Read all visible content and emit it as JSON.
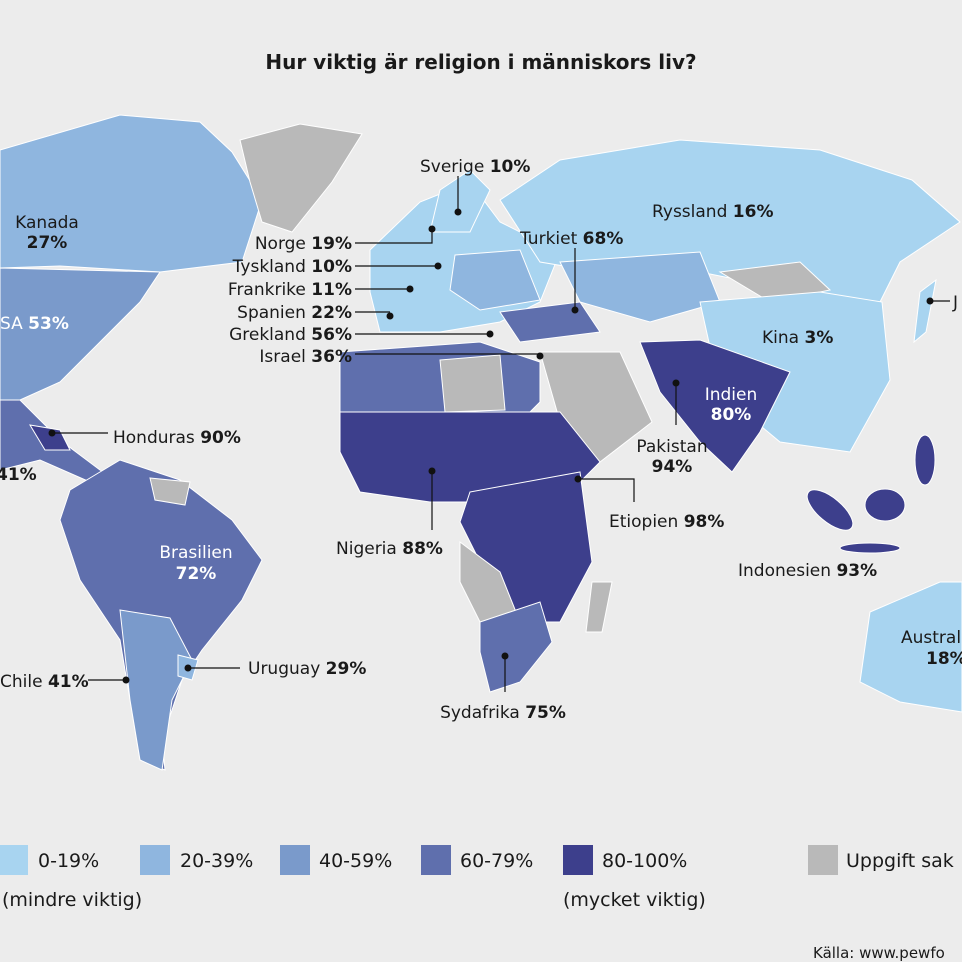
{
  "title": "Hur viktig är religion i människors liv?",
  "labels": [
    {
      "name": "Sverige",
      "value": "10%"
    },
    {
      "name": "Kanada",
      "value": "27%"
    },
    {
      "name": "Ryssland",
      "value": "16%"
    },
    {
      "name": "Turkiet",
      "value": "68%"
    },
    {
      "name": "Norge",
      "value": "19%"
    },
    {
      "name": "Tyskland",
      "value": "10%"
    },
    {
      "name": "Frankrike",
      "value": "11%"
    },
    {
      "name": "Spanien",
      "value": "22%"
    },
    {
      "name": "Grekland",
      "value": "56%"
    },
    {
      "name": "Israel",
      "value": "36%"
    },
    {
      "name": "J"
    },
    {
      "name": "SA",
      "value": "53%"
    },
    {
      "name": "Kina",
      "value": "3%"
    },
    {
      "name": "Indien",
      "value": "80%"
    },
    {
      "name": "Pakistan",
      "value": "94%"
    },
    {
      "name": "Honduras",
      "value": "90%"
    },
    {
      "value": "41%"
    },
    {
      "name": "Etiopien",
      "value": "98%"
    },
    {
      "name": "Nigeria",
      "value": "88%"
    },
    {
      "name": "Brasilien",
      "value": "72%"
    },
    {
      "name": "Indonesien",
      "value": "93%"
    },
    {
      "name": "Austral",
      "value": "18%"
    },
    {
      "name": "Uruguay",
      "value": "29%"
    },
    {
      "name": "Chile",
      "value": "41%"
    },
    {
      "name": "Sydafrika",
      "value": "75%"
    }
  ],
  "legend": {
    "items": [
      "0-19%",
      "20-39%",
      "40-59%",
      "60-79%",
      "80-100%",
      "Uppgift sak"
    ],
    "notes": [
      "(mindre viktig)",
      "(mycket viktig)"
    ]
  },
  "source": "Källa: www.pewfo"
}
